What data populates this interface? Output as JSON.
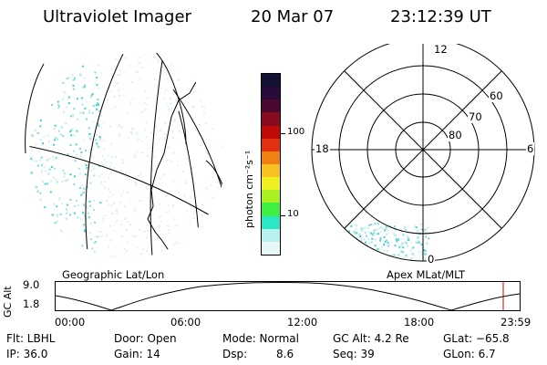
{
  "header": {
    "instrument": "Ultraviolet Imager",
    "date": "20 Mar 07",
    "time": "23:12:39 UT"
  },
  "left_map": {
    "label": "Geographic Lat/Lon"
  },
  "right_map": {
    "label": "Apex MLat/MLT",
    "mlt_labels": [
      "12",
      "18",
      "6",
      "0"
    ],
    "mlat_labels": [
      "60",
      "70",
      "80"
    ]
  },
  "colorbar": {
    "unit_label": "photon cm⁻²s⁻¹",
    "tick_labels": [
      "100",
      "10"
    ],
    "colors": [
      "#111133",
      "#2a0a3a",
      "#4a0a30",
      "#8a0a20",
      "#c00a0a",
      "#e43010",
      "#f08010",
      "#f8c020",
      "#f0f020",
      "#a8f020",
      "#40f040",
      "#28e8c8",
      "#b8f0f0",
      "#e8f8f8"
    ]
  },
  "altitude_panel": {
    "ylabel": "GC Alt",
    "y_ticks": [
      "9.0",
      "1.8"
    ],
    "x_ticks": [
      "00:00",
      "06:00",
      "12:00",
      "18:00",
      "23:59"
    ]
  },
  "info": {
    "row1": {
      "flt": "Flt: LBHL",
      "door": "Door: Open",
      "mode": "Mode:  Normal",
      "gc_alt": "GC Alt:  4.2 Re",
      "glat": "GLat:  −65.8"
    },
    "row2": {
      "ip": "IP: 36.0",
      "gain": "Gain: 14",
      "dsp_label": "Dsp:",
      "dsp_value": "8.6",
      "seq": "Seq: 39",
      "glon": "GLon:   6.7"
    }
  }
}
